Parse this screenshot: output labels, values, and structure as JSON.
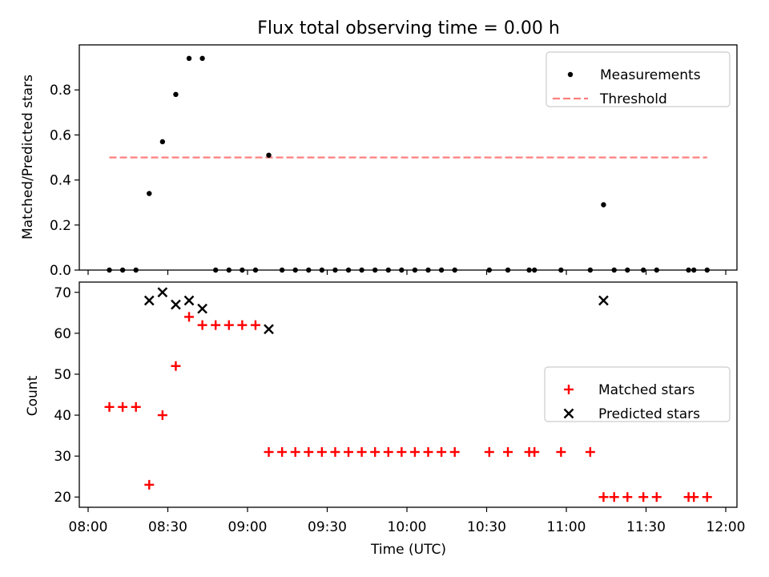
{
  "chart_data": [
    {
      "type": "scatter",
      "title": "Flux total observing time = 0.00 h",
      "xlabel": "",
      "ylabel": "Matched/Predicted stars",
      "xlim": [
        "08:00",
        "12:00"
      ],
      "ylim": [
        0,
        1.0
      ],
      "yticks": [
        0.0,
        0.2,
        0.4,
        0.6,
        0.8
      ],
      "ytick_labels": [
        "0.0",
        "0.2",
        "0.4",
        "0.6",
        "0.8"
      ],
      "legend_position": "top-right",
      "legend": [
        {
          "label": "Measurements",
          "marker": "dot",
          "color": "#000000"
        },
        {
          "label": "Threshold",
          "marker": "dashed-line",
          "color": "#ff7f7f"
        }
      ],
      "threshold": {
        "value": 0.5,
        "x_start": "08:08",
        "x_end": "11:53"
      },
      "series": [
        {
          "name": "Measurements",
          "color": "#000000",
          "x": [
            "08:08",
            "08:13",
            "08:18",
            "08:23",
            "08:28",
            "08:33",
            "08:38",
            "08:43",
            "08:48",
            "08:53",
            "08:58",
            "09:03",
            "09:08",
            "09:13",
            "09:18",
            "09:23",
            "09:28",
            "09:33",
            "09:38",
            "09:43",
            "09:48",
            "09:53",
            "09:58",
            "10:03",
            "10:08",
            "10:13",
            "10:18",
            "10:31",
            "10:38",
            "10:46",
            "10:48",
            "10:58",
            "11:09",
            "11:14",
            "11:18",
            "11:23",
            "11:29",
            "11:34",
            "11:46",
            "11:48",
            "11:53"
          ],
          "y": [
            0,
            0,
            0,
            0.34,
            0.57,
            0.78,
            0.94,
            0.94,
            0,
            0,
            0,
            0,
            0.51,
            0,
            0,
            0,
            0,
            0,
            0,
            0,
            0,
            0,
            0,
            0,
            0,
            0,
            0,
            0,
            0,
            0,
            0,
            0,
            0,
            0.29,
            0,
            0,
            0,
            0,
            0,
            0,
            0
          ]
        }
      ]
    },
    {
      "type": "scatter",
      "title": "",
      "xlabel": "Time (UTC)",
      "ylabel": "Count",
      "xlim": [
        "08:00",
        "12:00"
      ],
      "ylim": [
        17.5,
        72.5
      ],
      "xticks": [
        "08:00",
        "08:30",
        "09:00",
        "09:30",
        "10:00",
        "10:30",
        "11:00",
        "11:30",
        "12:00"
      ],
      "yticks": [
        20,
        30,
        40,
        50,
        60,
        70
      ],
      "ytick_labels": [
        "20",
        "30",
        "40",
        "50",
        "60",
        "70"
      ],
      "legend_position": "center-right",
      "legend": [
        {
          "label": "Matched stars",
          "marker": "plus",
          "color": "#ff0000"
        },
        {
          "label": "Predicted stars",
          "marker": "x",
          "color": "#000000"
        }
      ],
      "series": [
        {
          "name": "Matched stars",
          "marker": "plus",
          "color": "#ff0000",
          "x": [
            "08:08",
            "08:13",
            "08:18",
            "08:23",
            "08:28",
            "08:33",
            "08:38",
            "08:43",
            "08:48",
            "08:53",
            "08:58",
            "09:03",
            "09:08",
            "09:13",
            "09:18",
            "09:23",
            "09:28",
            "09:33",
            "09:38",
            "09:43",
            "09:48",
            "09:53",
            "09:58",
            "10:03",
            "10:08",
            "10:13",
            "10:18",
            "10:31",
            "10:38",
            "10:46",
            "10:48",
            "10:58",
            "11:09",
            "11:14",
            "11:18",
            "11:23",
            "11:29",
            "11:34",
            "11:46",
            "11:48",
            "11:53"
          ],
          "y": [
            42,
            42,
            42,
            23,
            40,
            52,
            64,
            62,
            62,
            62,
            62,
            62,
            31,
            31,
            31,
            31,
            31,
            31,
            31,
            31,
            31,
            31,
            31,
            31,
            31,
            31,
            31,
            31,
            31,
            31,
            31,
            31,
            31,
            20,
            20,
            20,
            20,
            20,
            20,
            20,
            20
          ]
        },
        {
          "name": "Predicted stars",
          "marker": "x",
          "color": "#000000",
          "x": [
            "08:23",
            "08:28",
            "08:33",
            "08:38",
            "08:43",
            "09:08",
            "11:14"
          ],
          "y": [
            68,
            70,
            67,
            68,
            66,
            61,
            68
          ]
        }
      ]
    }
  ]
}
